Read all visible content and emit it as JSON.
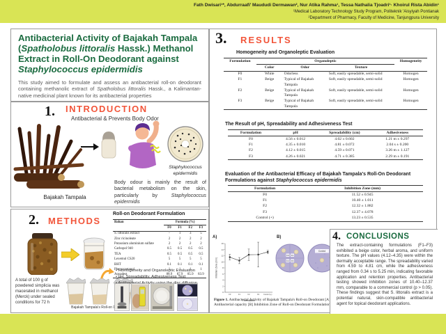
{
  "colors": {
    "bar_yellow_green": "#d9e455",
    "title_green": "#1a6b3f",
    "accent_orange": "#f2553a",
    "petri_lavender": "#b5aed4"
  },
  "header": {
    "authors": "Fath Dwisari¹*, Abdurraafi' Maududi Dermawan², Nur Atika Rahma¹, Tessa Nathalia Tjoadri¹· Khoirul Rista Abidin¹",
    "affiliation1": "¹Medical Laboratory Technology Study Program, Politeknik 'Aisyiyah Pontianak",
    "affiliation2": "²Department of Pharmacy, Faculty of Medicine, Tanjungpura University"
  },
  "title": {
    "part1": "Antibacterial Activity of Bajakah Tampala (",
    "italic1": "Spatholobus littoralis",
    "part2": " Hassk.) Methanol Extract in Roll-On Deodorant against ",
    "italic2": "Staphylococcus epidermidis",
    "abstract_part1": "This study aimed to formulate and assess an antibacterial roll-on deodorant containing methanolic extract of ",
    "abstract_italic": "Spatholobus littoralis",
    "abstract_part2": " Hassk., a Kalimantan-native medicinal plant known for its antibacterial properties"
  },
  "intro": {
    "number": "1.",
    "heading": "INTRODUCTION",
    "subtitle": "Antibacterial & Prevents Body Odor",
    "bajakah_caption": "Bajakah Tampala",
    "petri_label": "Staphylococcus epidermidis",
    "body_part1": "Body odour is mainly the result of bacterial metabolism on the skin, particularly by ",
    "body_italic": "Staphylococcus epidermidis"
  },
  "methods": {
    "number": "2.",
    "heading": "METHODS",
    "maceration_text": "A total of 100 g of powdered simplicia was macerated in methanol (Merck) under sealed conditions for 72 h",
    "formulation": {
      "title": "Roll-on Deodorant Formulation",
      "col_ingredient": "Bahan",
      "col_group": "Formula (%)",
      "cols": [
        "F0",
        "F1",
        "F2",
        "F3"
      ],
      "rows": [
        [
          "S. littoralis extract",
          "-",
          "1",
          "3",
          "5"
        ],
        [
          "Zinc ricinoleate",
          "2",
          "2",
          "2",
          "2"
        ],
        [
          "Potassium aluminium sulfate",
          "2",
          "2",
          "2",
          "2"
        ],
        [
          "Carbopol 940",
          "0.5",
          "0.5",
          "0.5",
          "0.5"
        ],
        [
          "TEA",
          "0.5",
          "0.5",
          "0.5",
          "0.5"
        ],
        [
          "Lexemul CS20",
          "5",
          "5",
          "5",
          "5"
        ],
        [
          "BHT",
          "0.1",
          "0.1",
          "0.1",
          "0.1"
        ],
        [
          "Phenoxyetanol",
          "1",
          "1",
          "1",
          "1"
        ],
        [
          "Aquadest",
          "88.9",
          "87.9",
          "85.9",
          "83.9"
        ]
      ]
    },
    "bullets": [
      "Homogeneity and Organoleptic Evaluation",
      "pH, Spreadability, Adhesiveness Test",
      "Antibacterial Activity using the disc diffusion"
    ],
    "cups_caption": "Bajakah Tampala's Roll-on Deodorant"
  },
  "results": {
    "number": "3.",
    "heading": "RESULTS",
    "table1": {
      "title": "Homogeneity and Organoleptic Evaluation",
      "h_formulation": "Formulation",
      "h_organoleptic": "Organoleptic",
      "h_color": "Color",
      "h_odor": "Odor",
      "h_texture": "Texture",
      "h_homogeneity": "Homogeneity",
      "rows": [
        [
          "F0",
          "White",
          "Odorless",
          "Soft, easily spreadable, semi-solid",
          "Homogen"
        ],
        [
          "F1",
          "Beige",
          "Typical of Bajakah Tampala",
          "Soft, easily spreadable, semi-solid",
          "Homogen"
        ],
        [
          "F2",
          "Beige",
          "Typical of Bajakah Tampala",
          "Soft, easily spreadable, semi-solid",
          "Homogen"
        ],
        [
          "F3",
          "Beige",
          "Typical of Bajakah Tampala",
          "Soft, easily spreadable, semi-solid",
          "Homogen"
        ]
      ]
    },
    "table2": {
      "title": "The Result of pH, Spreadability and Adhesiveness Test",
      "headers": [
        "Formulation",
        "pH",
        "Spreadability (cm)",
        "Adhesiveness"
      ],
      "rows": [
        [
          "F0",
          "4.56 ± 0.012",
          "4.02 ± 0.602",
          "1.21 m ± 0.297"
        ],
        [
          "F1",
          "4.35 ± 0.010",
          "4.81 ± 0.072",
          "2.04 s ± 0.200"
        ],
        [
          "F2",
          "4.12 ± 0.015",
          "4.59 ± 0.071",
          "3.26 m ± 1.127"
        ],
        [
          "F3",
          "4.26 ± 0.021",
          "4.71 ± 0.385",
          "2.29 m ± 0.191"
        ]
      ]
    },
    "table3": {
      "title_part1": "Evaluation of the Antibacterial Efficacy of Bajakah Tampala's Roll-On Deodorant Formulations against ",
      "title_italic": "Staphylococcus epidermidis",
      "headers": [
        "Formulation",
        "Inhibition Zone (mm)"
      ],
      "rows": [
        [
          "F0",
          "11.52 ± 0.945"
        ],
        [
          "F1",
          "10.40 ± 1.011"
        ],
        [
          "F2",
          "12.32 ± 1.882"
        ],
        [
          "F3",
          "12.37 ± 4.078"
        ],
        [
          "Control (+)",
          "13.23 ± 0.535"
        ]
      ]
    },
    "figure": {
      "label_a": "A)",
      "label_b": "B)",
      "petri_labels": [
        "F0",
        "F1",
        "F2",
        "F3"
      ],
      "control_label": "Control",
      "caption_bold": "Figure 1.",
      "caption_rest": " Antibacterial Activity of Bajakah Tampala's Roll-on Deodorant [A] Antibacterial capacity [B] Inhibition Zone of Roll-on Deodorant Formulation"
    }
  },
  "conclusions": {
    "number": "4.",
    "heading": "CONCLUSIONS",
    "body": "The extract-containing formulations (F1–F3) exhibited a beige color, herbal aroma, and uniform texture. The pH values (4.12–4.35) were within the dermally acceptable range. The spreadability varied from 4.59 to 4.81 cm, while the adhesiveness ranged from 0.34 s to 5.25 min, indicating favorable application and retention properties. Antibacterial testing showed inhibition zones of 10.40–12.37 mm, comparable to a commercial control (p > 0.05). These findings suggest that S. littoralis extract is a potential natural, skin-compatible antibacterial agent for topical deodorant applications."
  },
  "chart_data": {
    "type": "line",
    "categories": [
      "F0",
      "F1",
      "F2",
      "F3",
      "Control (+)"
    ],
    "values": [
      11.52,
      10.4,
      12.32,
      12.37,
      13.23
    ],
    "errors": [
      0.945,
      1.011,
      1.882,
      4.078,
      0.535
    ],
    "title": "",
    "xlabel": "Formulation",
    "ylabel": "Inhibition Zone (mm)",
    "ylim": [
      0,
      16
    ],
    "grid": false,
    "legend": "none"
  }
}
